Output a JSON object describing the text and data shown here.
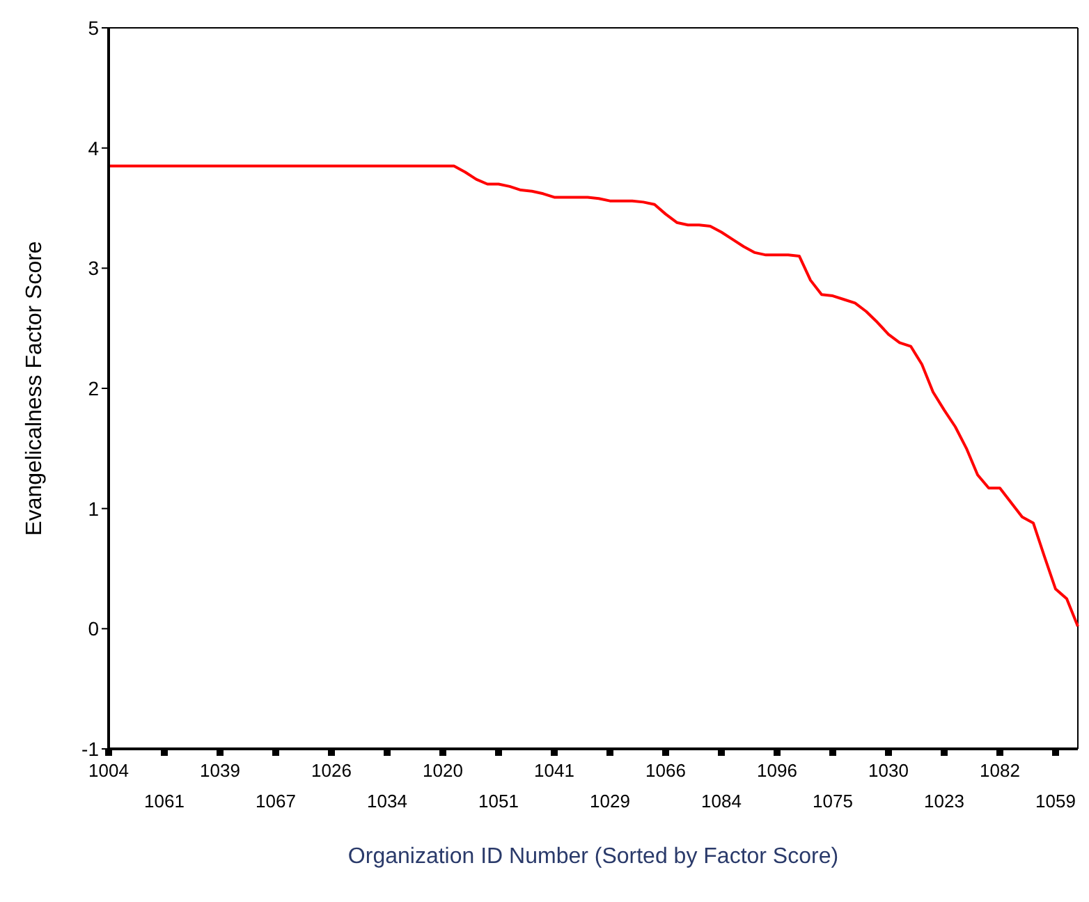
{
  "chart_data": {
    "type": "line",
    "xlabel": "Organization ID Number (Sorted by Factor Score)",
    "ylabel": "Evangelicalness Factor Score",
    "categories": [
      "1004",
      null,
      null,
      null,
      null,
      "1061",
      null,
      null,
      null,
      null,
      "1039",
      null,
      null,
      null,
      null,
      "1067",
      null,
      null,
      null,
      null,
      "1026",
      null,
      null,
      null,
      null,
      "1034",
      null,
      null,
      null,
      null,
      "1020",
      null,
      null,
      null,
      null,
      "1051",
      null,
      null,
      null,
      null,
      "1041",
      null,
      null,
      null,
      null,
      "1029",
      null,
      null,
      null,
      null,
      "1066",
      null,
      null,
      null,
      null,
      "1084",
      null,
      null,
      null,
      null,
      "1096",
      null,
      null,
      null,
      null,
      "1075",
      null,
      null,
      null,
      null,
      "1030",
      null,
      null,
      null,
      null,
      "1023",
      null,
      null,
      null,
      null,
      "1082",
      null,
      null,
      null,
      null,
      "1059",
      null,
      null
    ],
    "series": [
      {
        "color": "#ff0000",
        "values": [
          3.85,
          3.85,
          3.85,
          3.85,
          3.85,
          3.85,
          3.85,
          3.85,
          3.85,
          3.85,
          3.85,
          3.85,
          3.85,
          3.85,
          3.85,
          3.85,
          3.85,
          3.85,
          3.85,
          3.85,
          3.85,
          3.85,
          3.85,
          3.85,
          3.85,
          3.85,
          3.85,
          3.85,
          3.85,
          3.85,
          3.85,
          3.85,
          3.8,
          3.74,
          3.7,
          3.7,
          3.68,
          3.65,
          3.64,
          3.62,
          3.59,
          3.59,
          3.59,
          3.59,
          3.58,
          3.56,
          3.56,
          3.56,
          3.55,
          3.53,
          3.45,
          3.38,
          3.36,
          3.36,
          3.35,
          3.3,
          3.24,
          3.18,
          3.13,
          3.11,
          3.11,
          3.11,
          3.1,
          2.9,
          2.78,
          2.77,
          2.74,
          2.71,
          2.64,
          2.55,
          2.45,
          2.38,
          2.35,
          2.2,
          1.97,
          1.82,
          1.68,
          1.5,
          1.28,
          1.17,
          1.17,
          1.05,
          0.93,
          0.88,
          0.6,
          0.33,
          0.25,
          0.02
        ]
      }
    ],
    "ylim": [
      -1,
      5
    ],
    "yticks": [
      -1,
      0,
      1,
      2,
      3,
      4,
      5
    ],
    "marker": "none",
    "line_style": "solid"
  }
}
